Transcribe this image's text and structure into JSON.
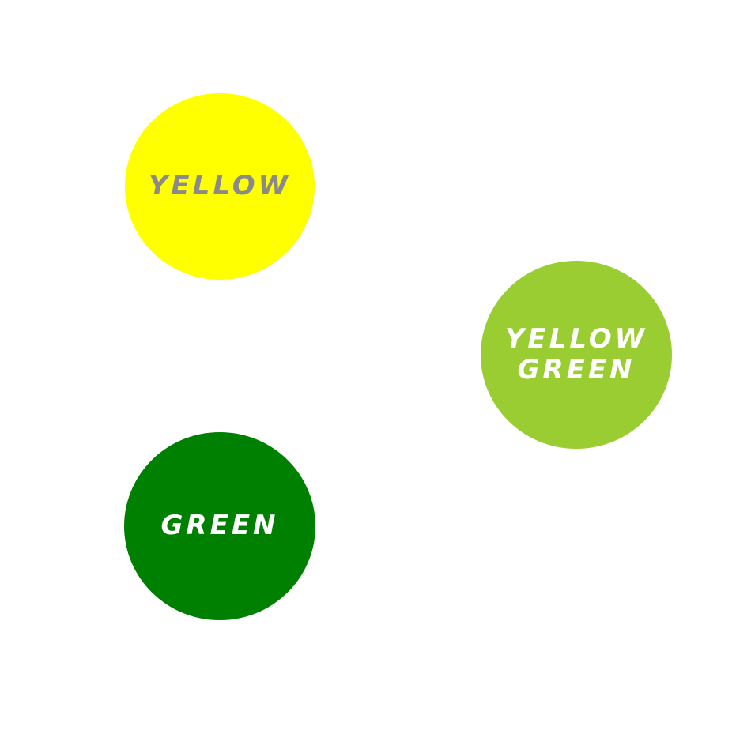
{
  "circles": {
    "yellow": {
      "label": "YELLOW",
      "fill": "#ffff00",
      "text_color": "#8a8a8a"
    },
    "yellow_green": {
      "label_line1": "YELLOW",
      "label_line2": "GREEN",
      "fill": "#9acd32",
      "text_color": "#ffffff"
    },
    "green": {
      "label": "GREEN",
      "fill": "#008000",
      "text_color": "#ffffff"
    }
  },
  "background": "#ffffff"
}
